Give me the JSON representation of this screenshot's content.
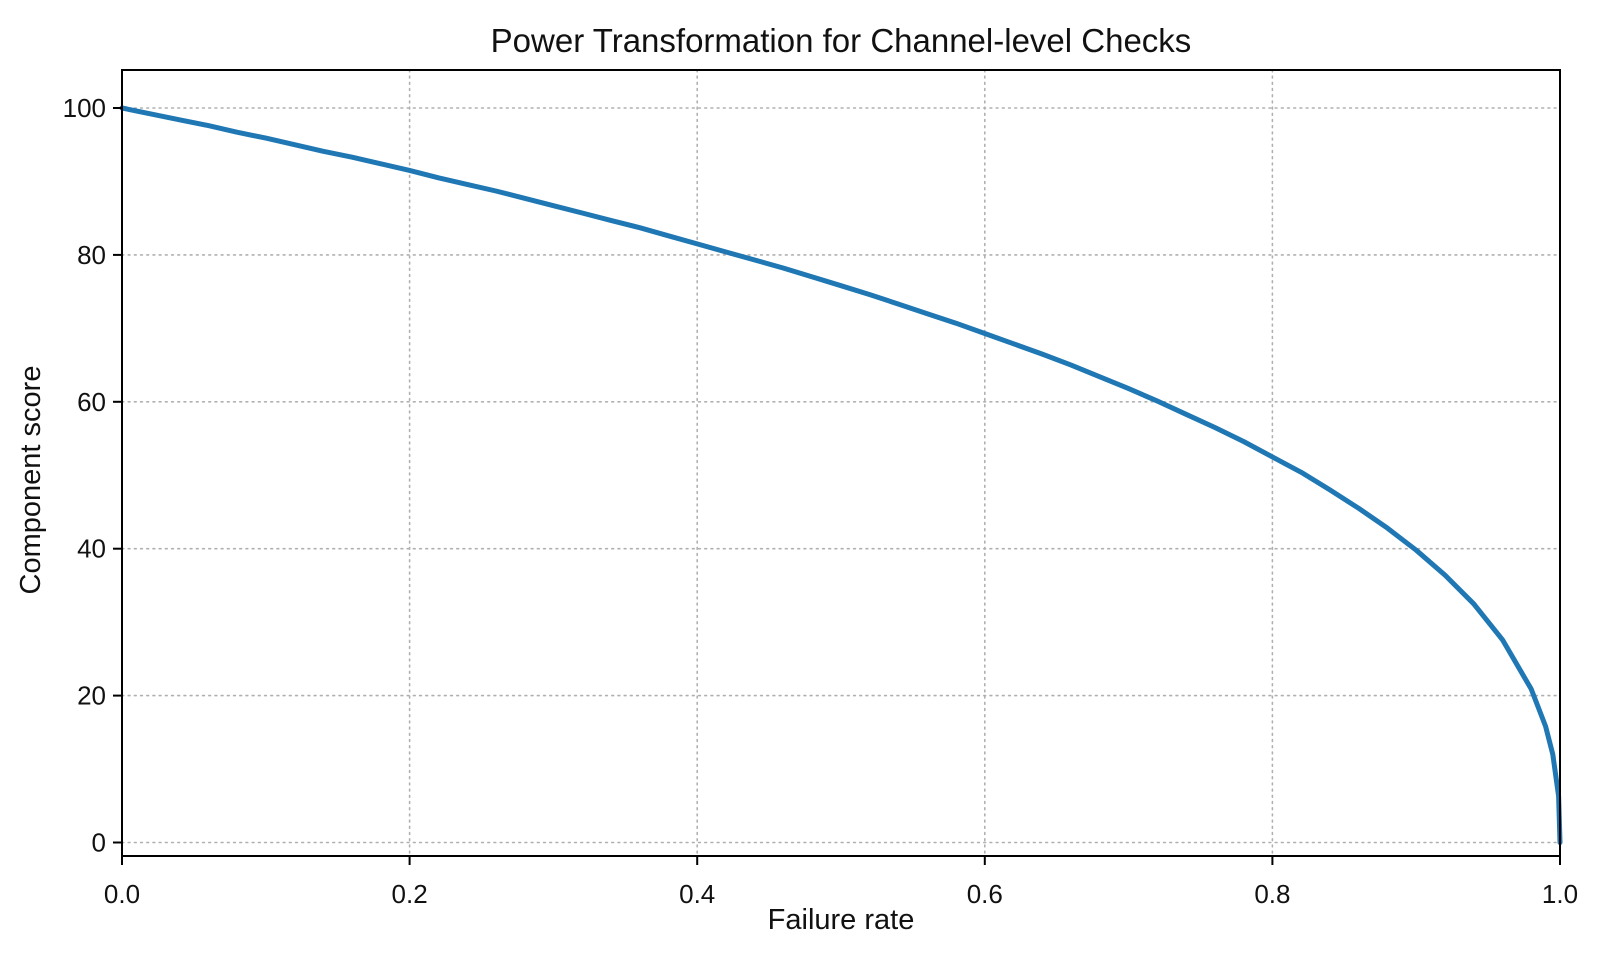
{
  "chart_data": {
    "type": "line",
    "title": "Power Transformation for Channel-level Checks",
    "xlabel": "Failure rate",
    "ylabel": "Component score",
    "xlim": [
      0.0,
      1.0
    ],
    "ylim": [
      0,
      100
    ],
    "x_tick_values": [
      0.0,
      0.2,
      0.4,
      0.6,
      0.8,
      1.0
    ],
    "x_tick_labels": [
      "0.0",
      "0.2",
      "0.4",
      "0.6",
      "0.8",
      "1.0"
    ],
    "y_tick_values": [
      0,
      20,
      40,
      60,
      80,
      100
    ],
    "y_tick_labels": [
      "0",
      "20",
      "40",
      "60",
      "80",
      "100"
    ],
    "grid": "dotted, both axes",
    "legend": "none",
    "colors": {
      "line": "#1f77b4",
      "grid": "#b0b0b0",
      "spine": "#000000",
      "text": "#111111",
      "background": "#ffffff"
    },
    "series": [
      {
        "name": "Component score",
        "points": [
          [
            0.0,
            100.0
          ],
          [
            0.02,
            99.2
          ],
          [
            0.04,
            98.4
          ],
          [
            0.06,
            97.6
          ],
          [
            0.08,
            96.7
          ],
          [
            0.1,
            95.9
          ],
          [
            0.12,
            95.0
          ],
          [
            0.14,
            94.1
          ],
          [
            0.16,
            93.3
          ],
          [
            0.18,
            92.4
          ],
          [
            0.2,
            91.5
          ],
          [
            0.22,
            90.5
          ],
          [
            0.24,
            89.6
          ],
          [
            0.26,
            88.7
          ],
          [
            0.28,
            87.7
          ],
          [
            0.3,
            86.7
          ],
          [
            0.32,
            85.7
          ],
          [
            0.34,
            84.7
          ],
          [
            0.36,
            83.7
          ],
          [
            0.38,
            82.6
          ],
          [
            0.4,
            81.5
          ],
          [
            0.42,
            80.4
          ],
          [
            0.44,
            79.3
          ],
          [
            0.46,
            78.2
          ],
          [
            0.48,
            77.0
          ],
          [
            0.5,
            75.8
          ],
          [
            0.52,
            74.6
          ],
          [
            0.54,
            73.3
          ],
          [
            0.56,
            72.0
          ],
          [
            0.58,
            70.7
          ],
          [
            0.6,
            69.3
          ],
          [
            0.62,
            67.9
          ],
          [
            0.64,
            66.5
          ],
          [
            0.66,
            65.0
          ],
          [
            0.68,
            63.4
          ],
          [
            0.7,
            61.8
          ],
          [
            0.72,
            60.1
          ],
          [
            0.74,
            58.3
          ],
          [
            0.76,
            56.5
          ],
          [
            0.78,
            54.6
          ],
          [
            0.8,
            52.5
          ],
          [
            0.82,
            50.4
          ],
          [
            0.84,
            48.0
          ],
          [
            0.86,
            45.5
          ],
          [
            0.88,
            42.8
          ],
          [
            0.9,
            39.8
          ],
          [
            0.92,
            36.4
          ],
          [
            0.94,
            32.5
          ],
          [
            0.96,
            27.6
          ],
          [
            0.98,
            20.9
          ],
          [
            0.99,
            15.8
          ],
          [
            0.995,
            12.0
          ],
          [
            0.999,
            6.3
          ],
          [
            1.0,
            0.0
          ]
        ]
      }
    ]
  }
}
